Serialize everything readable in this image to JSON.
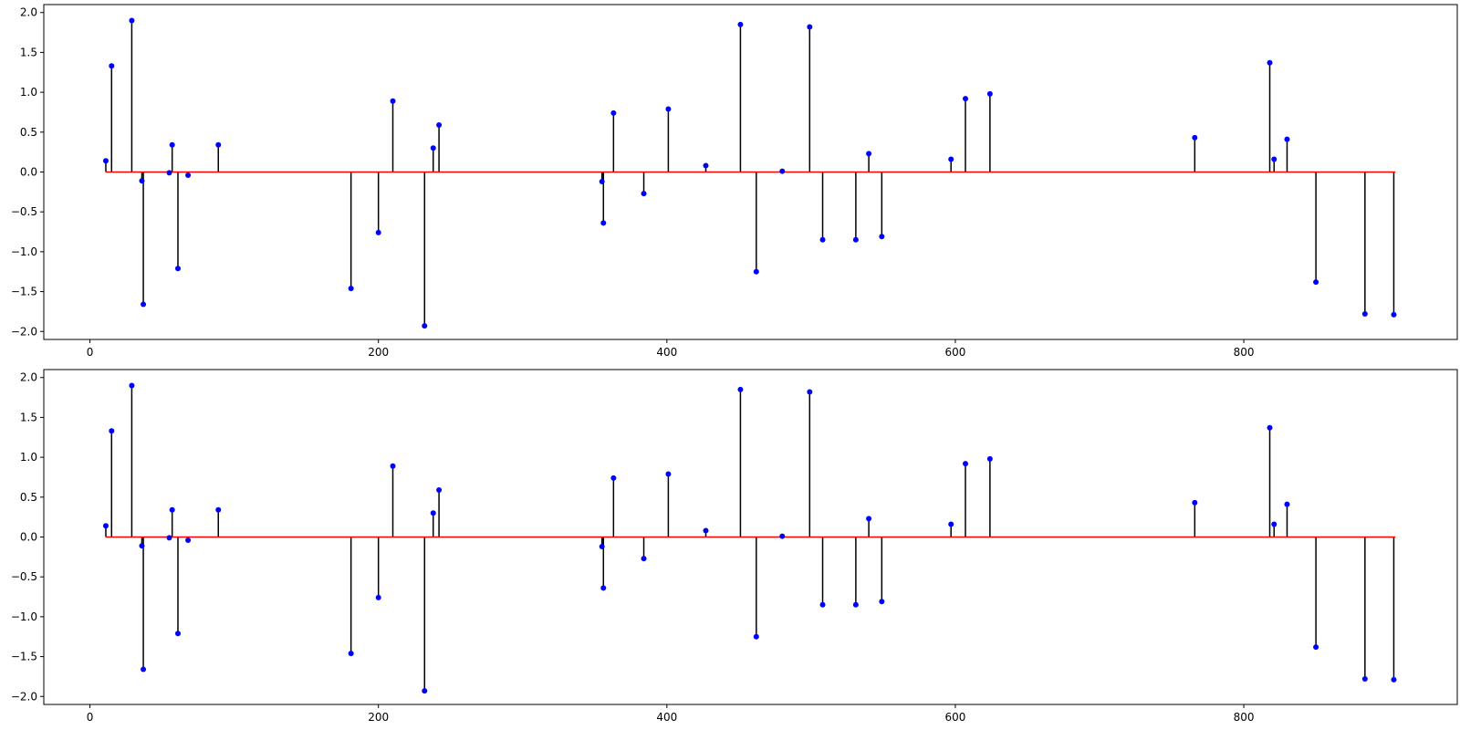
{
  "chart_data": [
    {
      "type": "stem",
      "title": "",
      "xlabel": "",
      "ylabel": "",
      "xlim": [
        -32,
        948
      ],
      "ylim": [
        -2.1,
        2.1
      ],
      "x_ticks": [
        0,
        200,
        400,
        600,
        800
      ],
      "x_tick_labels": [
        "0",
        "200",
        "400",
        "600",
        "800"
      ],
      "y_ticks": [
        2.0,
        1.5,
        1.0,
        0.5,
        0.0,
        -0.5,
        -1.0,
        -1.5,
        -2.0
      ],
      "y_tick_labels": [
        "2.0",
        "1.5",
        "1.0",
        "0.5",
        "0.0",
        "−0.5",
        "−1.0",
        "−1.5",
        "−2.0"
      ],
      "baseline": {
        "value": 0,
        "x_range": [
          11,
          905
        ],
        "color": "#ff0000"
      },
      "stem_color": "#000000",
      "marker_color": "#0000ff",
      "grid": false,
      "legend": "none",
      "points": [
        [
          11,
          0.14
        ],
        [
          15,
          1.33
        ],
        [
          29,
          1.9
        ],
        [
          36,
          -0.11
        ],
        [
          37,
          -1.66
        ],
        [
          55,
          -0.01
        ],
        [
          57,
          0.34
        ],
        [
          61,
          -1.21
        ],
        [
          68,
          -0.04
        ],
        [
          89,
          0.34
        ],
        [
          181,
          -1.46
        ],
        [
          200,
          -0.76
        ],
        [
          210,
          0.89
        ],
        [
          232,
          -1.93
        ],
        [
          238,
          0.3
        ],
        [
          242,
          0.59
        ],
        [
          355,
          -0.12
        ],
        [
          356,
          -0.64
        ],
        [
          363,
          0.74
        ],
        [
          384,
          -0.27
        ],
        [
          401,
          0.79
        ],
        [
          427,
          0.08
        ],
        [
          451,
          1.85
        ],
        [
          462,
          -1.25
        ],
        [
          480,
          0.01
        ],
        [
          499,
          1.82
        ],
        [
          508,
          -0.85
        ],
        [
          531,
          -0.85
        ],
        [
          540,
          0.23
        ],
        [
          549,
          -0.81
        ],
        [
          597,
          0.16
        ],
        [
          607,
          0.92
        ],
        [
          624,
          0.98
        ],
        [
          766,
          0.43
        ],
        [
          818,
          1.37
        ],
        [
          821,
          0.16
        ],
        [
          830,
          0.41
        ],
        [
          850,
          -1.38
        ],
        [
          884,
          -1.78
        ],
        [
          904,
          -1.79
        ]
      ]
    },
    {
      "type": "stem",
      "title": "",
      "xlabel": "",
      "ylabel": "",
      "xlim": [
        -32,
        948
      ],
      "ylim": [
        -2.1,
        2.1
      ],
      "x_ticks": [
        0,
        200,
        400,
        600,
        800
      ],
      "x_tick_labels": [
        "0",
        "200",
        "400",
        "600",
        "800"
      ],
      "y_ticks": [
        2.0,
        1.5,
        1.0,
        0.5,
        0.0,
        -0.5,
        -1.0,
        -1.5,
        -2.0
      ],
      "y_tick_labels": [
        "2.0",
        "1.5",
        "1.0",
        "0.5",
        "0.0",
        "−0.5",
        "−1.0",
        "−1.5",
        "−2.0"
      ],
      "baseline": {
        "value": 0,
        "x_range": [
          11,
          905
        ],
        "color": "#ff0000"
      },
      "stem_color": "#000000",
      "marker_color": "#0000ff",
      "grid": false,
      "legend": "none",
      "points": [
        [
          11,
          0.14
        ],
        [
          15,
          1.33
        ],
        [
          29,
          1.9
        ],
        [
          36,
          -0.11
        ],
        [
          37,
          -1.66
        ],
        [
          55,
          -0.01
        ],
        [
          57,
          0.34
        ],
        [
          61,
          -1.21
        ],
        [
          68,
          -0.04
        ],
        [
          89,
          0.34
        ],
        [
          181,
          -1.46
        ],
        [
          200,
          -0.76
        ],
        [
          210,
          0.89
        ],
        [
          232,
          -1.93
        ],
        [
          238,
          0.3
        ],
        [
          242,
          0.59
        ],
        [
          355,
          -0.12
        ],
        [
          356,
          -0.64
        ],
        [
          363,
          0.74
        ],
        [
          384,
          -0.27
        ],
        [
          401,
          0.79
        ],
        [
          427,
          0.08
        ],
        [
          451,
          1.85
        ],
        [
          462,
          -1.25
        ],
        [
          480,
          0.01
        ],
        [
          499,
          1.82
        ],
        [
          508,
          -0.85
        ],
        [
          531,
          -0.85
        ],
        [
          540,
          0.23
        ],
        [
          549,
          -0.81
        ],
        [
          597,
          0.16
        ],
        [
          607,
          0.92
        ],
        [
          624,
          0.98
        ],
        [
          766,
          0.43
        ],
        [
          818,
          1.37
        ],
        [
          821,
          0.16
        ],
        [
          830,
          0.41
        ],
        [
          850,
          -1.38
        ],
        [
          884,
          -1.78
        ],
        [
          904,
          -1.79
        ]
      ]
    }
  ]
}
